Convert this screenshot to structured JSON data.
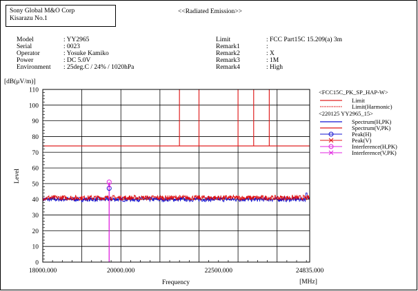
{
  "header": {
    "company_line1": "Sony Global M&O Corp",
    "company_line2": "Kisarazu No.1",
    "title": "<<Radiated Emission>>"
  },
  "info_left": {
    "labels": [
      "Model",
      "Serial",
      "Operator",
      "Power",
      "Environment"
    ],
    "values": [
      ": YY2965",
      ": 0023",
      ": Yosuke Kamiko",
      ": DC 5.0V",
      ": 25deg.C / 24% / 1020hPa"
    ]
  },
  "info_right": {
    "labels": [
      "Limit",
      "Remark1",
      "Remark2",
      "Remark3",
      "Remark4"
    ],
    "values": [
      ": FCC Part15C 15.209(a) 3m",
      ":",
      ": X",
      ": 1M",
      ": High"
    ]
  },
  "chart_data": {
    "type": "line",
    "ylabel_unit": "[dB(μV/m)]",
    "ylabel": "Level",
    "xlabel": "Frequency",
    "x_unit": "[MHz]",
    "ylim": [
      0,
      110
    ],
    "y_ticks": [
      0,
      10,
      20,
      30,
      40,
      50,
      60,
      70,
      80,
      90,
      100,
      110
    ],
    "xlim": [
      18000,
      24835
    ],
    "x_ticks": [
      18000,
      20000,
      22500,
      24835
    ],
    "x_tick_labels": [
      "18000.000",
      "20000.000",
      "22500.000",
      "24835.000"
    ],
    "grid": true,
    "legend_position": "right",
    "legend": {
      "group1": "<FCC15C_PK_SP_HAP-W>",
      "group2": "<220125 YY2965_15>",
      "entries": [
        {
          "name": "Limit",
          "color": "#e02020",
          "style": "line"
        },
        {
          "name": "Limit(Harmonic)",
          "color": "#e02020",
          "style": "dotted"
        },
        {
          "name": "Spectrum(H,PK)",
          "color": "#1010d0",
          "style": "line"
        },
        {
          "name": "Spectrum(V,PK)",
          "color": "#e01010",
          "style": "line"
        },
        {
          "name": "Peak(H)",
          "color": "#1010d0",
          "style": "circle"
        },
        {
          "name": "Peak(V)",
          "color": "#e01010",
          "style": "cross"
        },
        {
          "name": "Interference(H,PK)",
          "color": "#e020e0",
          "style": "circle"
        },
        {
          "name": "Interference(V,PK)",
          "color": "#e020e0",
          "style": "cross"
        }
      ]
    },
    "limit_level": 74,
    "limit_vertical_lines_mhz": [
      21500,
      22000,
      23000,
      23400,
      23800
    ],
    "spectrum_level_h": 40,
    "spectrum_level_v": 41,
    "spectrum_end_bump": {
      "x": 24750,
      "y": 44
    },
    "peak_h": {
      "x": 19700,
      "y": 47
    },
    "interference_h": {
      "x": 19700,
      "y": 51
    },
    "interference_line_x": 19700,
    "colors": {
      "limit": "#e02020",
      "spec_h": "#1010d0",
      "spec_v": "#e01010",
      "interference": "#e020e0",
      "grid": "#000000"
    }
  }
}
